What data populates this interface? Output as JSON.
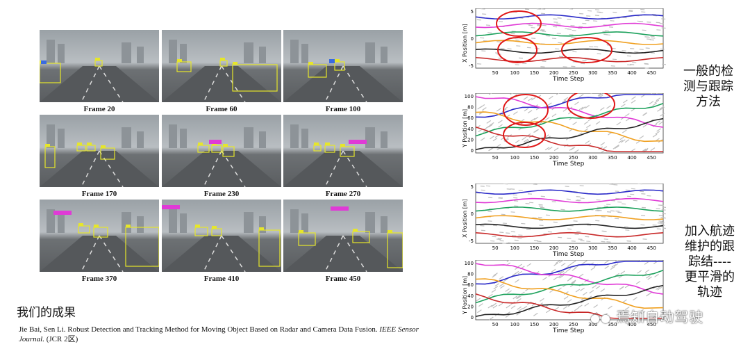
{
  "frames": [
    {
      "caption": "Frame 20"
    },
    {
      "caption": "Frame 60"
    },
    {
      "caption": "Frame 100"
    },
    {
      "caption": "Frame 170"
    },
    {
      "caption": "Frame 230"
    },
    {
      "caption": "Frame 270"
    },
    {
      "caption": "Frame 370"
    },
    {
      "caption": "Frame 410"
    },
    {
      "caption": "Frame 450"
    }
  ],
  "heading": "我们的成果",
  "citation": {
    "authors": "Jie Bai, Sen Li.",
    "title": "Robust Detection and Tracking Method for Moving Object Based on Radar and Camera Data Fusion.",
    "journal": "IEEE Sensor Journal.",
    "rank": "(JCR 2区)"
  },
  "plots": [
    {
      "ylabel": "X Position [m]",
      "xlabel": "Time Step",
      "yticks": [
        "5",
        "0",
        "-5"
      ],
      "xticks": [
        "50",
        "100",
        "150",
        "200",
        "250",
        "300",
        "350",
        "400",
        "450"
      ]
    },
    {
      "ylabel": "Y Position [m]",
      "xlabel": "Time Step",
      "yticks": [
        "100",
        "80",
        "60",
        "40",
        "20",
        "0"
      ],
      "xticks": [
        "50",
        "100",
        "150",
        "200",
        "250",
        "300",
        "350",
        "400",
        "450"
      ]
    },
    {
      "ylabel": "X Position [m]",
      "xlabel": "Time Step",
      "yticks": [
        "5",
        "0",
        "-5"
      ],
      "xticks": [
        "50",
        "100",
        "150",
        "200",
        "250",
        "300",
        "350",
        "400",
        "450"
      ]
    },
    {
      "ylabel": "Y Position [m]",
      "xlabel": "Time Step",
      "yticks": [
        "100",
        "80",
        "60",
        "40",
        "20",
        "0"
      ],
      "xticks": [
        "50",
        "100",
        "150",
        "200",
        "250",
        "300",
        "350",
        "400",
        "450"
      ]
    }
  ],
  "labels": {
    "top": [
      "一般的检",
      "测与跟踪",
      "方法"
    ],
    "bottom": [
      "加入航迹",
      "维护的跟",
      "踪结----",
      "更平滑的",
      "轨迹"
    ]
  },
  "watermark": "焉知自动驾驶",
  "colors": {
    "box": "#e6e62a",
    "tag_blue": "#3a6be0",
    "tag_magenta": "#e03ad6",
    "circle": "#e01818"
  }
}
